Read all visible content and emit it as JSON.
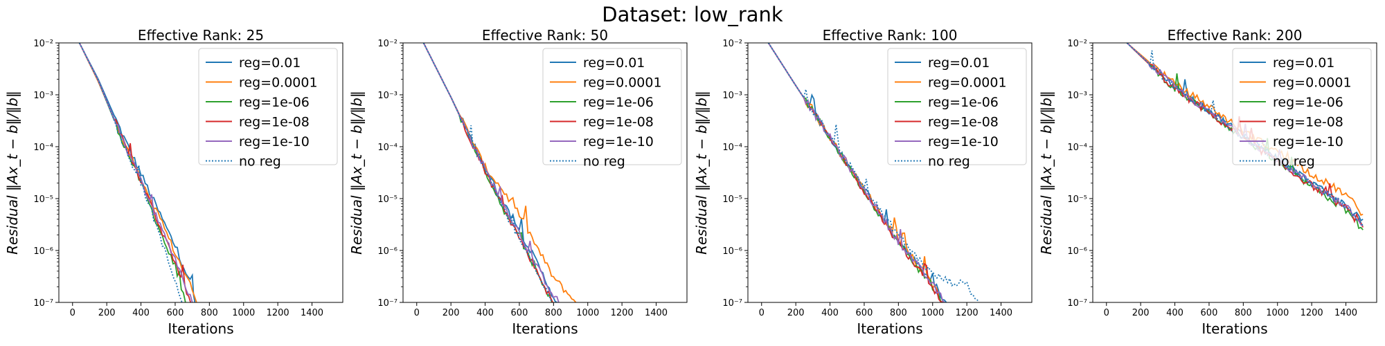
{
  "figure": {
    "suptitle": "Dataset: low_rank"
  },
  "colors": {
    "reg=0.01": "#1f77b4",
    "reg=0.0001": "#ff7f0e",
    "reg=1e-06": "#2ca02c",
    "reg=1e-08": "#d62728",
    "reg=1e-10": "#9467bd",
    "no reg": "#1f77b4"
  },
  "chart_data": [
    {
      "type": "line",
      "title": "Effective Rank: 25",
      "xlabel": "Iterations",
      "ylabel": "Residual ‖Ax_t − b‖/‖b‖",
      "yscale": "log",
      "xlim": [
        -80,
        1580
      ],
      "ylim": [
        1e-07,
        0.01
      ],
      "xticks": [
        0,
        200,
        400,
        600,
        800,
        1000,
        1200,
        1400
      ],
      "ytick_labels": [
        "10⁻⁷",
        "10⁻⁶",
        "10⁻⁵",
        "10⁻⁴",
        "10⁻³",
        "10⁻²"
      ],
      "legend_position": "upper-right",
      "series": [
        {
          "name": "reg=0.01",
          "style": "solid",
          "points": [
            [
              40,
              0.01
            ],
            [
              150,
              0.002
            ],
            [
              300,
              0.00015
            ],
            [
              400,
              3e-05
            ],
            [
              500,
              6e-06
            ],
            [
              600,
              1.2e-06
            ],
            [
              700,
              2e-07
            ],
            [
              715,
              1e-07
            ]
          ]
        },
        {
          "name": "reg=0.0001",
          "style": "solid",
          "points": [
            [
              40,
              0.01
            ],
            [
              150,
              0.0018
            ],
            [
              300,
              0.00012
            ],
            [
              400,
              2.5e-05
            ],
            [
              500,
              5e-06
            ],
            [
              600,
              9e-07
            ],
            [
              700,
              1.8e-07
            ],
            [
              725,
              1e-07
            ]
          ]
        },
        {
          "name": "reg=1e-06",
          "style": "solid",
          "points": [
            [
              40,
              0.01
            ],
            [
              150,
              0.0019
            ],
            [
              300,
              0.00011
            ],
            [
              400,
              2e-05
            ],
            [
              500,
              3e-06
            ],
            [
              600,
              4.5e-07
            ],
            [
              660,
              1e-07
            ]
          ]
        },
        {
          "name": "reg=1e-08",
          "style": "solid",
          "points": [
            [
              40,
              0.01
            ],
            [
              150,
              0.0019
            ],
            [
              300,
              0.00012
            ],
            [
              400,
              2.2e-05
            ],
            [
              500,
              3.5e-06
            ],
            [
              600,
              6e-07
            ],
            [
              690,
              1e-07
            ]
          ]
        },
        {
          "name": "reg=1e-10",
          "style": "solid",
          "points": [
            [
              40,
              0.01
            ],
            [
              150,
              0.0019
            ],
            [
              300,
              0.00012
            ],
            [
              400,
              2.2e-05
            ],
            [
              500,
              3.6e-06
            ],
            [
              600,
              7e-07
            ],
            [
              700,
              1e-07
            ]
          ]
        },
        {
          "name": "no reg",
          "style": "dotted",
          "points": [
            [
              40,
              0.01
            ],
            [
              150,
              0.0019
            ],
            [
              300,
              0.00011
            ],
            [
              400,
              2e-05
            ],
            [
              500,
              2.5e-06
            ],
            [
              560,
              6e-07
            ],
            [
              640,
              1e-07
            ]
          ]
        }
      ]
    },
    {
      "type": "line",
      "title": "Effective Rank: 50",
      "xlabel": "Iterations",
      "ylabel": "Residual ‖Ax_t − b‖/‖b‖",
      "yscale": "log",
      "xlim": [
        -80,
        1580
      ],
      "ylim": [
        1e-07,
        0.01
      ],
      "xticks": [
        0,
        200,
        400,
        600,
        800,
        1000,
        1200,
        1400
      ],
      "ytick_labels": [
        "10⁻⁷",
        "10⁻⁶",
        "10⁻⁵",
        "10⁻⁴",
        "10⁻³",
        "10⁻²"
      ],
      "legend_position": "upper-right",
      "series": [
        {
          "name": "reg=0.01",
          "style": "solid",
          "points": [
            [
              40,
              0.01
            ],
            [
              200,
              0.0009
            ],
            [
              400,
              4e-05
            ],
            [
              500,
              9e-06
            ],
            [
              600,
              2.5e-06
            ],
            [
              700,
              6e-07
            ],
            [
              800,
              1.3e-07
            ],
            [
              820,
              1e-07
            ]
          ]
        },
        {
          "name": "reg=0.0001",
          "style": "solid",
          "points": [
            [
              40,
              0.01
            ],
            [
              200,
              0.0009
            ],
            [
              400,
              4e-05
            ],
            [
              500,
              1.5e-05
            ],
            [
              600,
              5e-06
            ],
            [
              700,
              1.2e-06
            ],
            [
              800,
              3e-07
            ],
            [
              930,
              1e-07
            ]
          ]
        },
        {
          "name": "reg=1e-06",
          "style": "solid",
          "points": [
            [
              40,
              0.01
            ],
            [
              200,
              0.0009
            ],
            [
              400,
              3.5e-05
            ],
            [
              500,
              7e-06
            ],
            [
              600,
              1.7e-06
            ],
            [
              700,
              4e-07
            ],
            [
              790,
              1e-07
            ]
          ]
        },
        {
          "name": "reg=1e-08",
          "style": "solid",
          "points": [
            [
              40,
              0.01
            ],
            [
              200,
              0.0009
            ],
            [
              400,
              3.5e-05
            ],
            [
              500,
              7.2e-06
            ],
            [
              600,
              1.8e-06
            ],
            [
              700,
              4.2e-07
            ],
            [
              795,
              1e-07
            ]
          ]
        },
        {
          "name": "reg=1e-10",
          "style": "solid",
          "points": [
            [
              40,
              0.01
            ],
            [
              200,
              0.0009
            ],
            [
              400,
              3.7e-05
            ],
            [
              500,
              8.5e-06
            ],
            [
              600,
              2.2e-06
            ],
            [
              700,
              5e-07
            ],
            [
              800,
              1.4e-07
            ],
            [
              830,
              1e-07
            ]
          ]
        },
        {
          "name": "no reg",
          "style": "dotted",
          "points": [
            [
              40,
              0.01
            ],
            [
              200,
              0.0009
            ],
            [
              400,
              3.5e-05
            ],
            [
              500,
              7e-06
            ],
            [
              600,
              1.7e-06
            ],
            [
              700,
              4e-07
            ],
            [
              790,
              1e-07
            ]
          ]
        }
      ]
    },
    {
      "type": "line",
      "title": "Effective Rank: 100",
      "xlabel": "Iterations",
      "ylabel": "Residual ‖Ax_t − b‖/‖b‖",
      "yscale": "log",
      "xlim": [
        -80,
        1580
      ],
      "ylim": [
        1e-07,
        0.01
      ],
      "xticks": [
        0,
        200,
        400,
        600,
        800,
        1000,
        1200,
        1400
      ],
      "ytick_labels": [
        "10⁻⁷",
        "10⁻⁶",
        "10⁻⁵",
        "10⁻⁴",
        "10⁻³",
        "10⁻²"
      ],
      "legend_position": "upper-right",
      "series": [
        {
          "name": "reg=0.01",
          "style": "solid",
          "points": [
            [
              40,
              0.01
            ],
            [
              200,
              0.0015
            ],
            [
              400,
              0.00015
            ],
            [
              600,
              1.5e-05
            ],
            [
              800,
              1.5e-06
            ],
            [
              1000,
              2.5e-07
            ],
            [
              1080,
              1e-07
            ]
          ]
        },
        {
          "name": "reg=0.0001",
          "style": "solid",
          "points": [
            [
              40,
              0.01
            ],
            [
              200,
              0.0015
            ],
            [
              400,
              0.00015
            ],
            [
              600,
              1.5e-05
            ],
            [
              800,
              1.6e-06
            ],
            [
              1000,
              2.2e-07
            ],
            [
              1060,
              1e-07
            ]
          ]
        },
        {
          "name": "reg=1e-06",
          "style": "solid",
          "points": [
            [
              40,
              0.01
            ],
            [
              200,
              0.0015
            ],
            [
              400,
              0.00015
            ],
            [
              600,
              1.4e-05
            ],
            [
              800,
              1.4e-06
            ],
            [
              1000,
              2e-07
            ],
            [
              1050,
              1e-07
            ]
          ]
        },
        {
          "name": "reg=1e-08",
          "style": "solid",
          "points": [
            [
              40,
              0.01
            ],
            [
              200,
              0.0015
            ],
            [
              400,
              0.00015
            ],
            [
              600,
              1.4e-05
            ],
            [
              800,
              1.4e-06
            ],
            [
              1000,
              2e-07
            ],
            [
              1060,
              1e-07
            ]
          ]
        },
        {
          "name": "reg=1e-10",
          "style": "solid",
          "points": [
            [
              40,
              0.01
            ],
            [
              200,
              0.0015
            ],
            [
              400,
              0.00015
            ],
            [
              600,
              1.5e-05
            ],
            [
              800,
              1.5e-06
            ],
            [
              1000,
              2.2e-07
            ],
            [
              1070,
              1e-07
            ]
          ]
        },
        {
          "name": "no reg",
          "style": "dotted",
          "points": [
            [
              40,
              0.01
            ],
            [
              200,
              0.0015
            ],
            [
              400,
              0.00016
            ],
            [
              600,
              1.7e-05
            ],
            [
              720,
              4.5e-06
            ],
            [
              800,
              2e-06
            ],
            [
              900,
              8e-07
            ],
            [
              1000,
              3.5e-07
            ],
            [
              1100,
              2.5e-07
            ],
            [
              1200,
              2.2e-07
            ],
            [
              1270,
              1e-07
            ]
          ]
        }
      ]
    },
    {
      "type": "line",
      "title": "Effective Rank: 200",
      "xlabel": "Iterations",
      "ylabel": "Residual ‖Ax_t − b‖/‖b‖",
      "yscale": "log",
      "xlim": [
        -80,
        1580
      ],
      "ylim": [
        1e-07,
        0.01
      ],
      "xticks": [
        0,
        200,
        400,
        600,
        800,
        1000,
        1200,
        1400
      ],
      "ytick_labels": [
        "10⁻⁷",
        "10⁻⁶",
        "10⁻⁵",
        "10⁻⁴",
        "10⁻³",
        "10⁻²"
      ],
      "legend_position": "upper-right",
      "series": [
        {
          "name": "reg=0.01",
          "style": "solid",
          "points": [
            [
              120,
              0.01
            ],
            [
              400,
              0.0014
            ],
            [
              600,
              0.0005
            ],
            [
              800,
              0.00017
            ],
            [
              1000,
              6e-05
            ],
            [
              1200,
              2e-05
            ],
            [
              1400,
              7e-06
            ],
            [
              1500,
              4e-06
            ]
          ]
        },
        {
          "name": "reg=0.0001",
          "style": "solid",
          "points": [
            [
              120,
              0.01
            ],
            [
              400,
              0.0016
            ],
            [
              600,
              0.0006
            ],
            [
              800,
              0.0002
            ],
            [
              1000,
              8e-05
            ],
            [
              1200,
              3e-05
            ],
            [
              1400,
              1.2e-05
            ],
            [
              1500,
              5e-06
            ]
          ]
        },
        {
          "name": "reg=1e-06",
          "style": "solid",
          "points": [
            [
              120,
              0.01
            ],
            [
              400,
              0.0013
            ],
            [
              600,
              0.00045
            ],
            [
              800,
              0.00015
            ],
            [
              1000,
              5e-05
            ],
            [
              1200,
              1.7e-05
            ],
            [
              1400,
              6e-06
            ],
            [
              1500,
              2.5e-06
            ]
          ]
        },
        {
          "name": "reg=1e-08",
          "style": "solid",
          "points": [
            [
              120,
              0.01
            ],
            [
              400,
              0.0013
            ],
            [
              600,
              0.00045
            ],
            [
              800,
              0.00015
            ],
            [
              1000,
              5e-05
            ],
            [
              1200,
              1.8e-05
            ],
            [
              1400,
              6.5e-06
            ],
            [
              1500,
              2.8e-06
            ]
          ]
        },
        {
          "name": "reg=1e-10",
          "style": "solid",
          "points": [
            [
              120,
              0.01
            ],
            [
              400,
              0.0014
            ],
            [
              600,
              0.00047
            ],
            [
              800,
              0.00016
            ],
            [
              1000,
              5.5e-05
            ],
            [
              1200,
              2e-05
            ],
            [
              1400,
              7e-06
            ],
            [
              1500,
              3e-06
            ]
          ]
        },
        {
          "name": "no reg",
          "style": "dotted",
          "points": [
            [
              120,
              0.01
            ],
            [
              400,
              0.0014
            ],
            [
              600,
              0.00048
            ],
            [
              800,
              0.00016
            ],
            [
              1000,
              5.5e-05
            ],
            [
              1200,
              2e-05
            ],
            [
              1400,
              7e-06
            ],
            [
              1500,
              3e-06
            ]
          ]
        }
      ]
    }
  ]
}
